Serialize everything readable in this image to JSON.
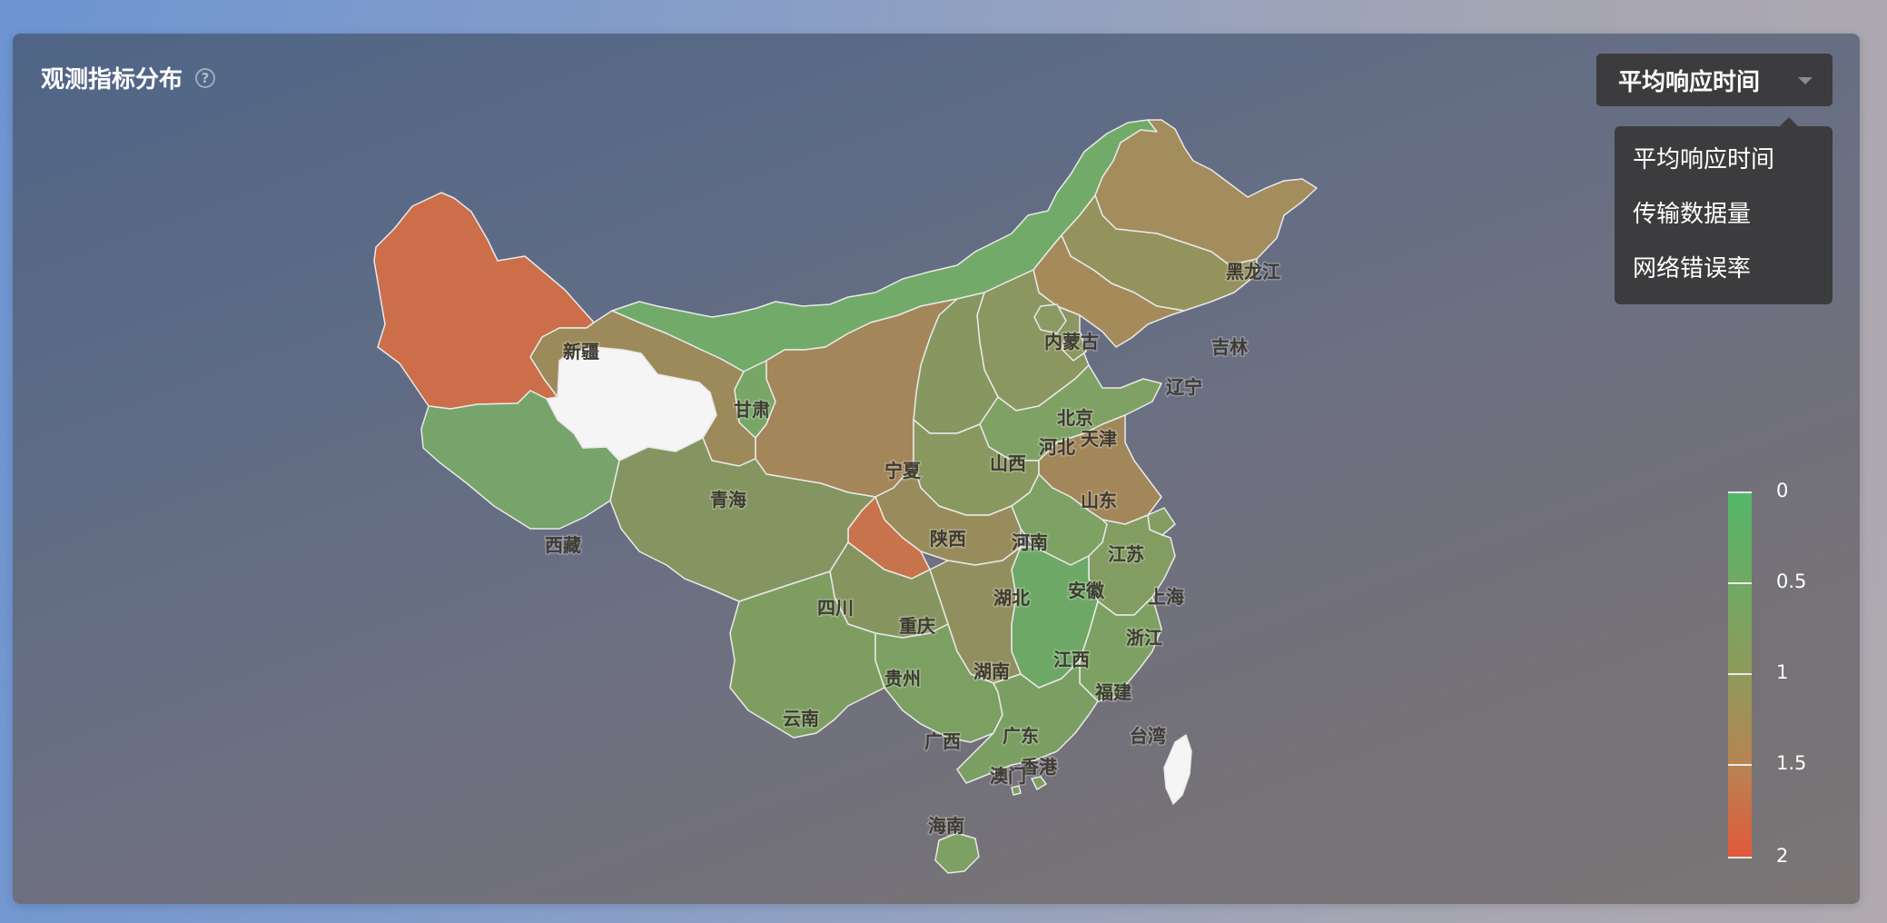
{
  "panel": {
    "title": "观测指标分布",
    "help_icon": "question-circle-icon"
  },
  "metric_select": {
    "selected": "平均响应时间",
    "options": [
      "平均响应时间",
      "传输数据量",
      "网络错误率"
    ]
  },
  "map": {
    "provinces": [
      {
        "name": "新疆",
        "value": 1.75,
        "color": "#cc6e4a"
      },
      {
        "name": "西藏",
        "value": 0.45,
        "color": "#76a46a"
      },
      {
        "name": "青海",
        "value": null,
        "color": "#f5f5f5"
      },
      {
        "name": "甘肃",
        "value": 1.1,
        "color": "#9c8a5b"
      },
      {
        "name": "内蒙古",
        "value": 0.3,
        "color": "#72aa6a"
      },
      {
        "name": "黑龙江",
        "value": 1.05,
        "color": "#a38d5c"
      },
      {
        "name": "吉林",
        "value": 0.9,
        "color": "#94935e"
      },
      {
        "name": "辽宁",
        "value": 1.15,
        "color": "#a58a5a"
      },
      {
        "name": "北京",
        "value": 0.7,
        "color": "#8b9a63"
      },
      {
        "name": "天津",
        "value": 0.8,
        "color": "#8f9760"
      },
      {
        "name": "河北",
        "value": 0.75,
        "color": "#8c9661"
      },
      {
        "name": "宁夏",
        "value": 0.35,
        "color": "#78a666"
      },
      {
        "name": "山西",
        "value": 0.7,
        "color": "#86975f"
      },
      {
        "name": "陕西",
        "value": 1.15,
        "color": "#a3865a"
      },
      {
        "name": "山东",
        "value": 0.6,
        "color": "#7fa264"
      },
      {
        "name": "河南",
        "value": 0.7,
        "color": "#88985f"
      },
      {
        "name": "江苏",
        "value": 1.1,
        "color": "#a2875a"
      },
      {
        "name": "安徽",
        "value": 0.55,
        "color": "#7ea164"
      },
      {
        "name": "上海",
        "value": 0.6,
        "color": "#829c62"
      },
      {
        "name": "湖北",
        "value": 0.95,
        "color": "#998c5c"
      },
      {
        "name": "重庆",
        "value": 1.6,
        "color": "#c7734b"
      },
      {
        "name": "四川",
        "value": 0.75,
        "color": "#859561"
      },
      {
        "name": "浙江",
        "value": 0.6,
        "color": "#839c61"
      },
      {
        "name": "江西",
        "value": 0.25,
        "color": "#6ea866"
      },
      {
        "name": "湖南",
        "value": 0.85,
        "color": "#918f5d"
      },
      {
        "name": "贵州",
        "value": 0.7,
        "color": "#869560"
      },
      {
        "name": "福建",
        "value": 0.55,
        "color": "#7da063"
      },
      {
        "name": "云南",
        "value": 0.55,
        "color": "#7e9e61"
      },
      {
        "name": "广西",
        "value": 0.55,
        "color": "#7c9f62"
      },
      {
        "name": "广东",
        "value": 0.55,
        "color": "#7b9f63"
      },
      {
        "name": "香港",
        "value": null,
        "color": "#7b9f63"
      },
      {
        "name": "澳门",
        "value": null,
        "color": "#7b9f63"
      },
      {
        "name": "台湾",
        "value": null,
        "color": "#f5f5f5"
      },
      {
        "name": "海南",
        "value": 0.5,
        "color": "#7ca162"
      }
    ]
  },
  "legend": {
    "ticks": [
      "0",
      "0.5",
      "1",
      "1.5",
      "2"
    ],
    "min": 0,
    "max": 2,
    "min_color": "#52b86a",
    "mid_color": "#a48b57",
    "max_color": "#e2573b"
  }
}
